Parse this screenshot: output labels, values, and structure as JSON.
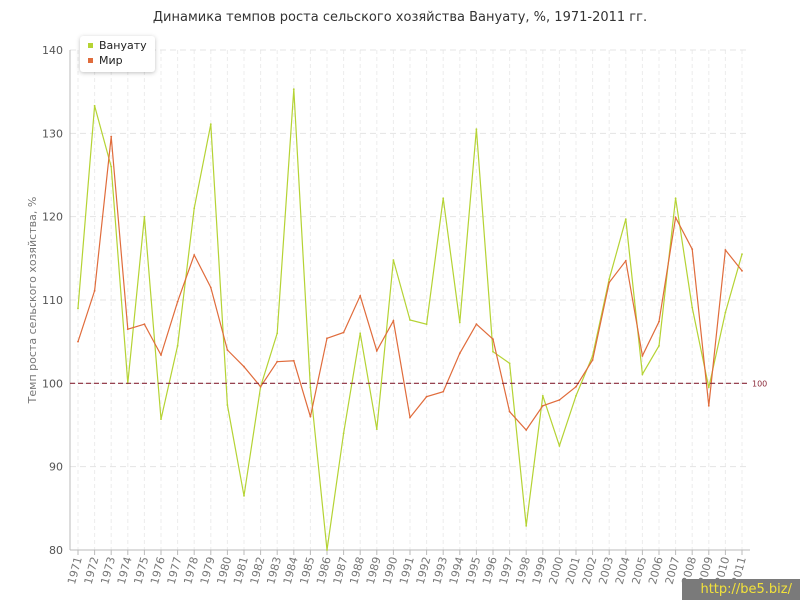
{
  "chart_data": {
    "type": "line",
    "title": "Динамика темпов роста сельского хозяйства Вануату, %, 1971-2011 гг.",
    "ylabel": "Темп роста сельского хозяйства, %",
    "xlabel": "",
    "ylim": [
      80,
      140
    ],
    "yticks": [
      "80",
      "90",
      "100",
      "110",
      "120",
      "130",
      "140"
    ],
    "x": [
      "1971",
      "1972",
      "1973",
      "1974",
      "1975",
      "1976",
      "1977",
      "1978",
      "1979",
      "1980",
      "1981",
      "1982",
      "1983",
      "1984",
      "1985",
      "1986",
      "1987",
      "1988",
      "1989",
      "1990",
      "1991",
      "1992",
      "1993",
      "1994",
      "1995",
      "1996",
      "1997",
      "1998",
      "1999",
      "2000",
      "2001",
      "2002",
      "2003",
      "2004",
      "2005",
      "2006",
      "2007",
      "2008",
      "2009",
      "2010",
      "2011"
    ],
    "grid": true,
    "legend_position": "top-left",
    "reference_line": {
      "value": 100,
      "label": "100",
      "color": "#8b2a3a"
    },
    "series": [
      {
        "name": "Вануату",
        "color": "#b5d334",
        "values": [
          109,
          133.3,
          126,
          100,
          120,
          95.7,
          104.5,
          121,
          131.1,
          97.4,
          86.5,
          99.6,
          106,
          135.3,
          99.5,
          80,
          94,
          106,
          94.5,
          114.8,
          107.6,
          107.1,
          122.2,
          107.3,
          130.5,
          103.8,
          102.4,
          82.9,
          98.5,
          92.5,
          98.5,
          103.3,
          112.5,
          119.7,
          101.1,
          104.5,
          122.2,
          109.1,
          99.5,
          108.5,
          115.5
        ]
      },
      {
        "name": "Мир",
        "color": "#e06c3c",
        "values": [
          105,
          111.1,
          129.6,
          106.5,
          107.1,
          103.4,
          109.8,
          115.4,
          111.5,
          104,
          102,
          99.6,
          102.6,
          102.7,
          96,
          105.4,
          106.1,
          110.5,
          103.9,
          107.5,
          95.9,
          98.4,
          99,
          103.6,
          107.1,
          105.3,
          96.6,
          94.4,
          97.3,
          98,
          99.6,
          102.8,
          112.1,
          114.7,
          103.3,
          107.4,
          119.9,
          116.1,
          97.3,
          116,
          113.5
        ]
      }
    ]
  },
  "watermark": "http://be5.biz/"
}
